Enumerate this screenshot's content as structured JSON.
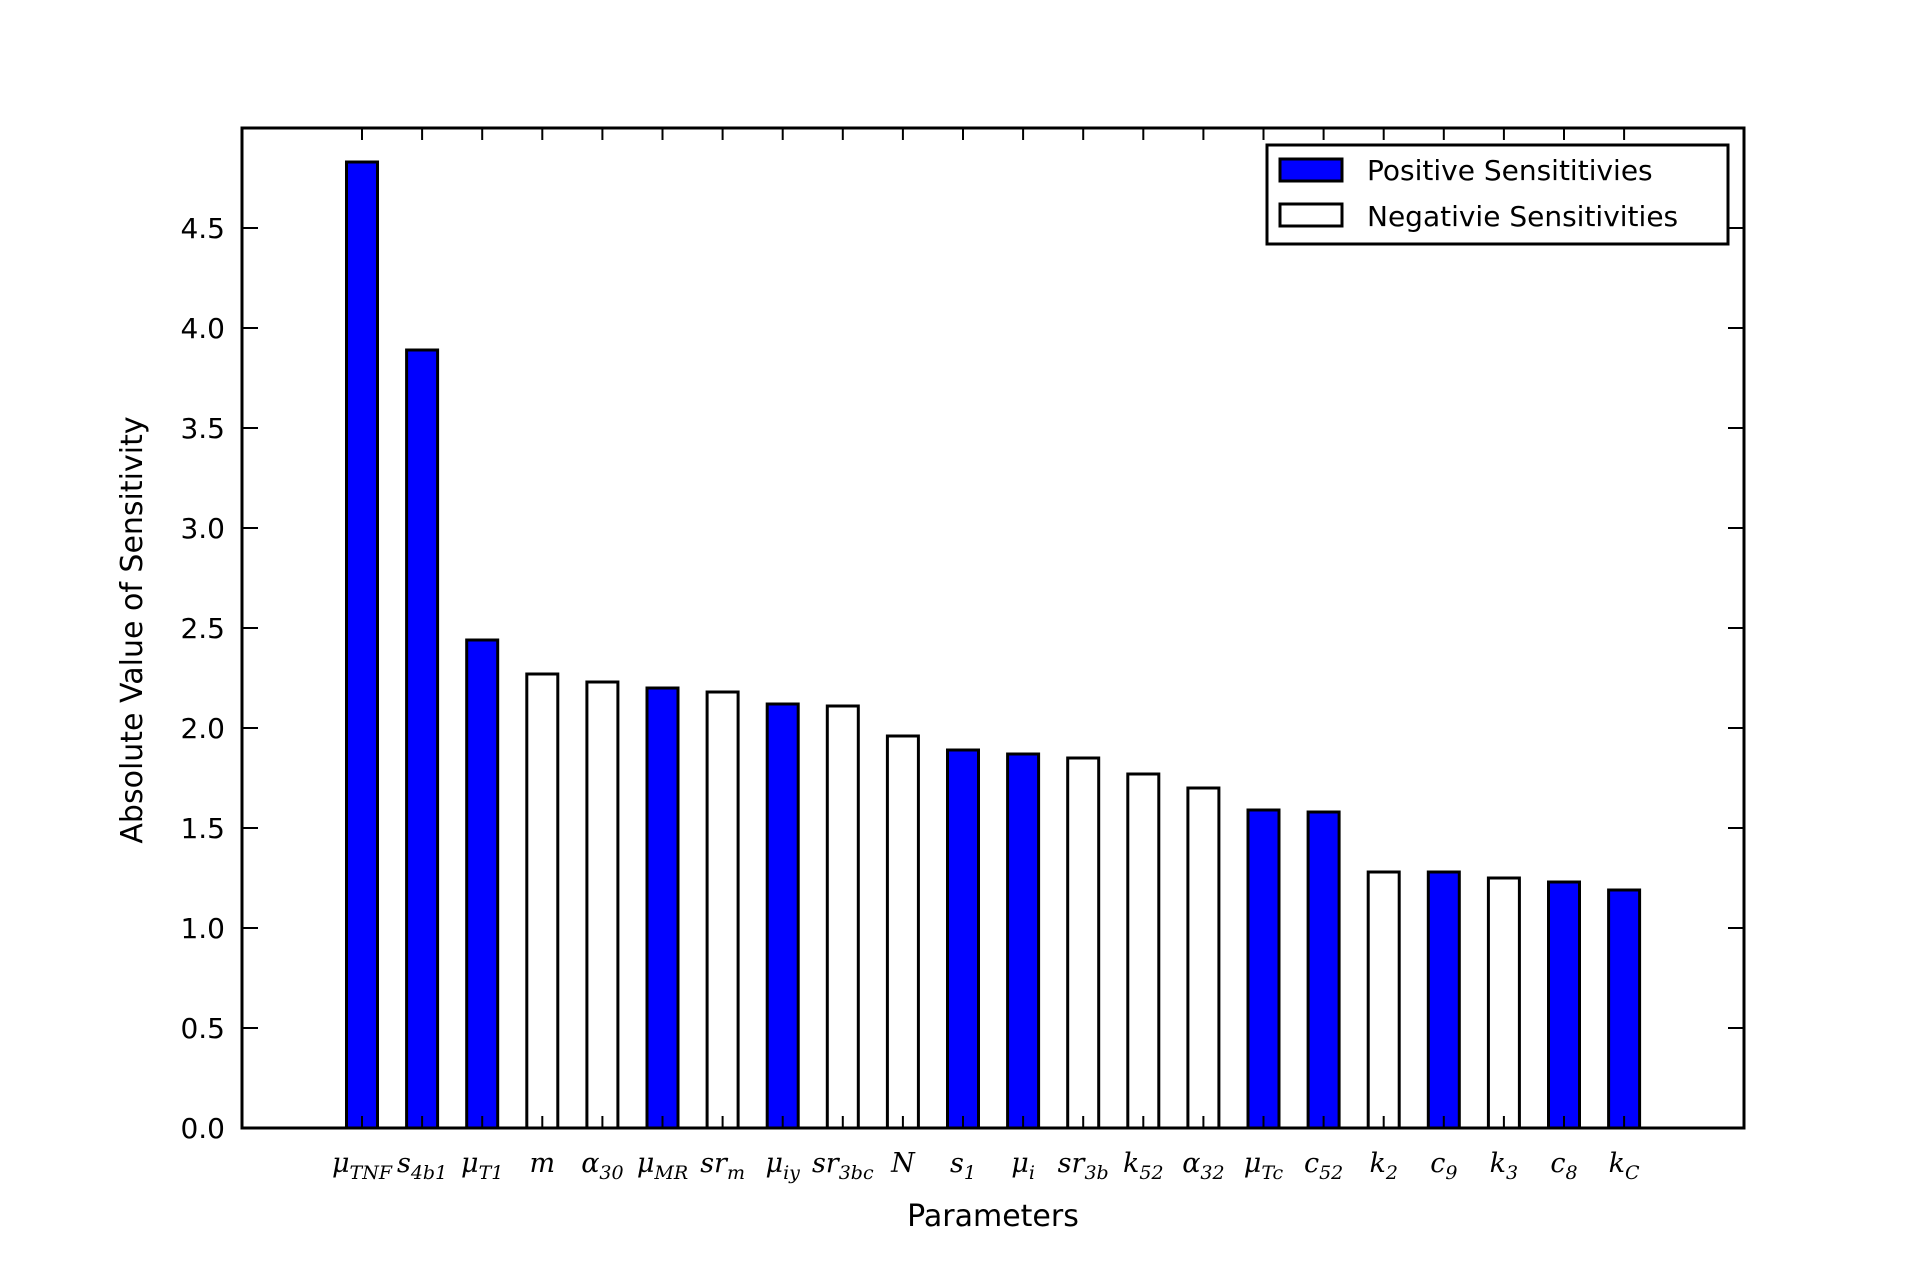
{
  "chart_data": {
    "type": "bar",
    "title": "",
    "xlabel": "Parameters",
    "ylabel": "Absolute Value of Sensitivity",
    "ylim": [
      0,
      5.0
    ],
    "yticks": [
      "0.0",
      "0.5",
      "1.0",
      "1.5",
      "2.0",
      "2.5",
      "3.0",
      "3.5",
      "4.0",
      "4.5"
    ],
    "grid": false,
    "legend_position": "top-right",
    "legend": [
      {
        "label": "Positive Sensititivies",
        "color": "#0000ff"
      },
      {
        "label": "Negativie Sensitivities",
        "color": "#ffffff"
      }
    ],
    "categories": [
      {
        "base": "μ",
        "sub": "TNF"
      },
      {
        "base": "s",
        "sub": "4b1"
      },
      {
        "base": "μ",
        "sub": "T1"
      },
      {
        "base": "m",
        "sub": ""
      },
      {
        "base": "α",
        "sub": "30"
      },
      {
        "base": "μ",
        "sub": "MR"
      },
      {
        "base": "sr",
        "sub": "m"
      },
      {
        "base": "μ",
        "sub": "iy"
      },
      {
        "base": "sr",
        "sub": "3bc"
      },
      {
        "base": "N",
        "sub": ""
      },
      {
        "base": "s",
        "sub": "1"
      },
      {
        "base": "μ",
        "sub": "i"
      },
      {
        "base": "sr",
        "sub": "3b"
      },
      {
        "base": "k",
        "sub": "52"
      },
      {
        "base": "α",
        "sub": "32"
      },
      {
        "base": "μ",
        "sub": "Tc"
      },
      {
        "base": "c",
        "sub": "52"
      },
      {
        "base": "k",
        "sub": "2"
      },
      {
        "base": "c",
        "sub": "9"
      },
      {
        "base": "k",
        "sub": "3"
      },
      {
        "base": "c",
        "sub": "8"
      },
      {
        "base": "k",
        "sub": "C"
      }
    ],
    "values": [
      4.83,
      3.89,
      2.44,
      2.27,
      2.23,
      2.2,
      2.18,
      2.12,
      2.11,
      1.96,
      1.89,
      1.87,
      1.85,
      1.77,
      1.7,
      1.59,
      1.58,
      1.28,
      1.28,
      1.25,
      1.23,
      1.19
    ],
    "signs": [
      "positive",
      "positive",
      "positive",
      "negative",
      "negative",
      "positive",
      "negative",
      "positive",
      "negative",
      "negative",
      "positive",
      "positive",
      "negative",
      "negative",
      "negative",
      "positive",
      "positive",
      "negative",
      "positive",
      "negative",
      "positive",
      "positive"
    ],
    "colors": {
      "positive": "#0000ff",
      "negative": "#ffffff",
      "edge": "#000000"
    }
  }
}
